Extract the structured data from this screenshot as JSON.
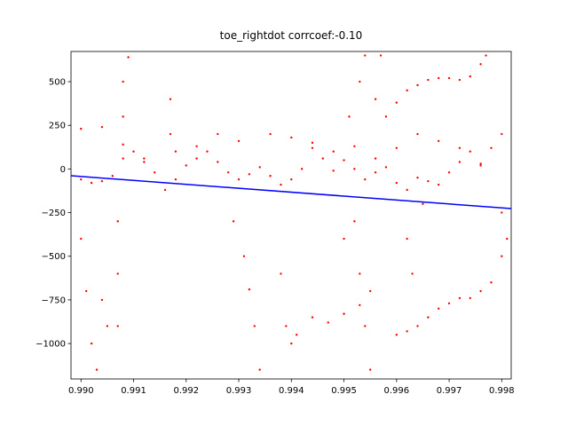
{
  "chart_data": {
    "type": "scatter",
    "title": "toe_rightdot corrcoef:-0.10",
    "xlim": [
      0.98981,
      0.99818
    ],
    "ylim": [
      -1203,
      673
    ],
    "xticks": [
      {
        "value": 0.99,
        "label": "0.990"
      },
      {
        "value": 0.991,
        "label": "0.991"
      },
      {
        "value": 0.992,
        "label": "0.992"
      },
      {
        "value": 0.993,
        "label": "0.993"
      },
      {
        "value": 0.994,
        "label": "0.994"
      },
      {
        "value": 0.995,
        "label": "0.995"
      },
      {
        "value": 0.996,
        "label": "0.996"
      },
      {
        "value": 0.997,
        "label": "0.997"
      },
      {
        "value": 0.998,
        "label": "0.998"
      }
    ],
    "yticks": [
      {
        "value": -1000,
        "label": "−1000"
      },
      {
        "value": -750,
        "label": "−750"
      },
      {
        "value": -500,
        "label": "−500"
      },
      {
        "value": -250,
        "label": "−250"
      },
      0,
      250,
      500
    ],
    "series": [
      {
        "type": "scatter",
        "color": "#ff0000",
        "x": [
          0.9898,
          0.99,
          0.9902,
          0.9904,
          0.9906,
          0.9908,
          0.991,
          0.9912,
          0.9914,
          0.9916,
          0.9918,
          0.992,
          0.9922,
          0.9924,
          0.9926,
          0.9928,
          0.993,
          0.9932,
          0.9934,
          0.9936,
          0.9938,
          0.994,
          0.9942,
          0.9944,
          0.9946,
          0.9948,
          0.995,
          0.9952,
          0.9954,
          0.9956,
          0.9958,
          0.996,
          0.9962,
          0.9964,
          0.9966,
          0.9968,
          0.997,
          0.9972,
          0.9974,
          0.9976,
          0.9978,
          0.998,
          0.9982,
          0.99,
          0.9904,
          0.9908,
          0.9912,
          0.9918,
          0.9922,
          0.9926,
          0.993,
          0.9936,
          0.994,
          0.9944,
          0.9948,
          0.9952,
          0.9956,
          0.996,
          0.9964,
          0.9968,
          0.9972,
          0.9976,
          0.9907,
          0.9907,
          0.9907,
          0.9908,
          0.9908,
          0.9909,
          0.9904,
          0.9905,
          0.99,
          0.9901,
          0.9902,
          0.9903,
          0.9917,
          0.9917,
          0.9929,
          0.9931,
          0.9932,
          0.9933,
          0.9934,
          0.9938,
          0.9939,
          0.994,
          0.9941,
          0.9944,
          0.9947,
          0.995,
          0.9953,
          0.9955,
          0.9952,
          0.9953,
          0.9954,
          0.9955,
          0.995,
          0.9951,
          0.9953,
          0.9954,
          0.9957,
          0.9956,
          0.996,
          0.9962,
          0.9964,
          0.9966,
          0.9968,
          0.997,
          0.9972,
          0.9974,
          0.9976,
          0.9978,
          0.998,
          0.9982,
          0.9958,
          0.996,
          0.9962,
          0.9964,
          0.9966,
          0.9968,
          0.997,
          0.9972,
          0.9974,
          0.9976,
          0.9977,
          0.9962,
          0.9963,
          0.9965,
          0.998,
          0.9981
        ],
        "values": [
          -20,
          -60,
          -80,
          -70,
          -40,
          60,
          100,
          40,
          -20,
          -120,
          -60,
          20,
          60,
          100,
          40,
          -20,
          -60,
          -30,
          10,
          -40,
          -90,
          -60,
          0,
          120,
          60,
          -10,
          50,
          0,
          -60,
          -20,
          10,
          -80,
          -120,
          -50,
          -70,
          -90,
          -20,
          40,
          100,
          20,
          120,
          200,
          140,
          230,
          240,
          140,
          60,
          100,
          130,
          200,
          160,
          200,
          180,
          150,
          100,
          130,
          60,
          120,
          200,
          160,
          120,
          30,
          -300,
          -600,
          -900,
          300,
          500,
          640,
          -750,
          -900,
          -400,
          -700,
          -1000,
          -1150,
          200,
          400,
          -300,
          -500,
          -690,
          -900,
          -1150,
          -600,
          -900,
          -1000,
          -950,
          -850,
          -880,
          -830,
          -780,
          -700,
          -300,
          -600,
          -900,
          -1150,
          -400,
          300,
          500,
          650,
          650,
          400,
          -950,
          -930,
          -900,
          -850,
          -800,
          -770,
          -740,
          -740,
          -700,
          -650,
          -500,
          -530,
          300,
          380,
          450,
          480,
          510,
          520,
          520,
          510,
          530,
          600,
          650,
          -400,
          -600,
          -200,
          -250,
          -400
        ]
      },
      {
        "type": "line",
        "color": "#0000ff",
        "x": [
          0.98981,
          0.99818
        ],
        "values": [
          -39,
          -227
        ]
      }
    ]
  }
}
